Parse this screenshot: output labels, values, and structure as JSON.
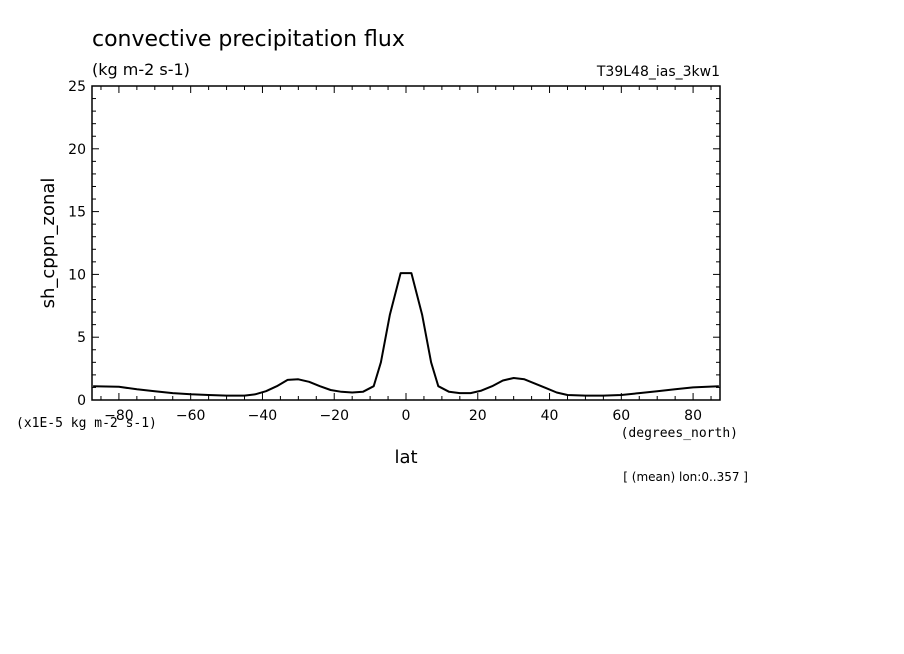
{
  "chart_data": {
    "type": "line",
    "title": "convective precipitation flux",
    "units": "(kg m-2 s-1)",
    "dataset": "T39L48_ias_3kw1",
    "ylabel": "sh_cppn_zonal",
    "xlabel": "lat",
    "xunits": "(degrees_north)",
    "yscale_note": "(x1E-5 kg m-2 s-1)",
    "footnote": "[ (mean) lon:0..357 ]",
    "xlim": [
      -87.5,
      87.5
    ],
    "ylim": [
      0,
      25
    ],
    "xticks": [
      -80,
      -60,
      -40,
      -20,
      0,
      20,
      40,
      60,
      80
    ],
    "yticks": [
      0,
      5,
      10,
      15,
      20,
      25
    ],
    "series": [
      {
        "x": [
          -87.2,
          -80,
          -75,
          -70,
          -65,
          -60,
          -55,
          -50,
          -45,
          -42,
          -39,
          -36,
          -33,
          -30,
          -27,
          -24,
          -21,
          -18,
          -15,
          -12,
          -9,
          -7,
          -4.5,
          -1.5,
          1.5,
          4.5,
          7,
          9,
          12,
          15,
          18,
          21,
          24,
          27,
          30,
          33,
          36,
          39,
          42,
          45,
          50,
          55,
          60,
          65,
          70,
          75,
          80,
          87.2
        ],
        "y": [
          1.1,
          1.05,
          0.85,
          0.7,
          0.55,
          0.45,
          0.4,
          0.35,
          0.35,
          0.45,
          0.7,
          1.1,
          1.6,
          1.65,
          1.45,
          1.1,
          0.8,
          0.65,
          0.6,
          0.65,
          1.1,
          3.0,
          6.8,
          10.1,
          10.1,
          6.8,
          3.0,
          1.1,
          0.65,
          0.55,
          0.55,
          0.75,
          1.1,
          1.55,
          1.75,
          1.65,
          1.3,
          0.95,
          0.6,
          0.4,
          0.35,
          0.35,
          0.4,
          0.55,
          0.7,
          0.85,
          1.0,
          1.1
        ]
      }
    ]
  }
}
